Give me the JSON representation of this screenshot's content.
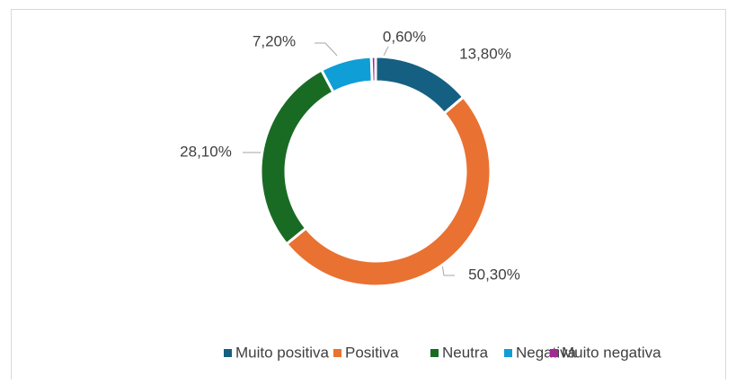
{
  "chart_data": {
    "type": "donut",
    "categories": [
      "Muito positiva",
      "Positiva",
      "Neutra",
      "Negativa",
      "Muito negativa"
    ],
    "values": [
      13.8,
      50.3,
      28.1,
      7.2,
      0.6
    ],
    "value_labels": [
      "13,80%",
      "50,30%",
      "28,10%",
      "7,20%",
      "0,60%"
    ],
    "colors": [
      "#156082",
      "#e97132",
      "#196b24",
      "#0f9ed5",
      "#a02b93"
    ],
    "legend": "bottom"
  }
}
